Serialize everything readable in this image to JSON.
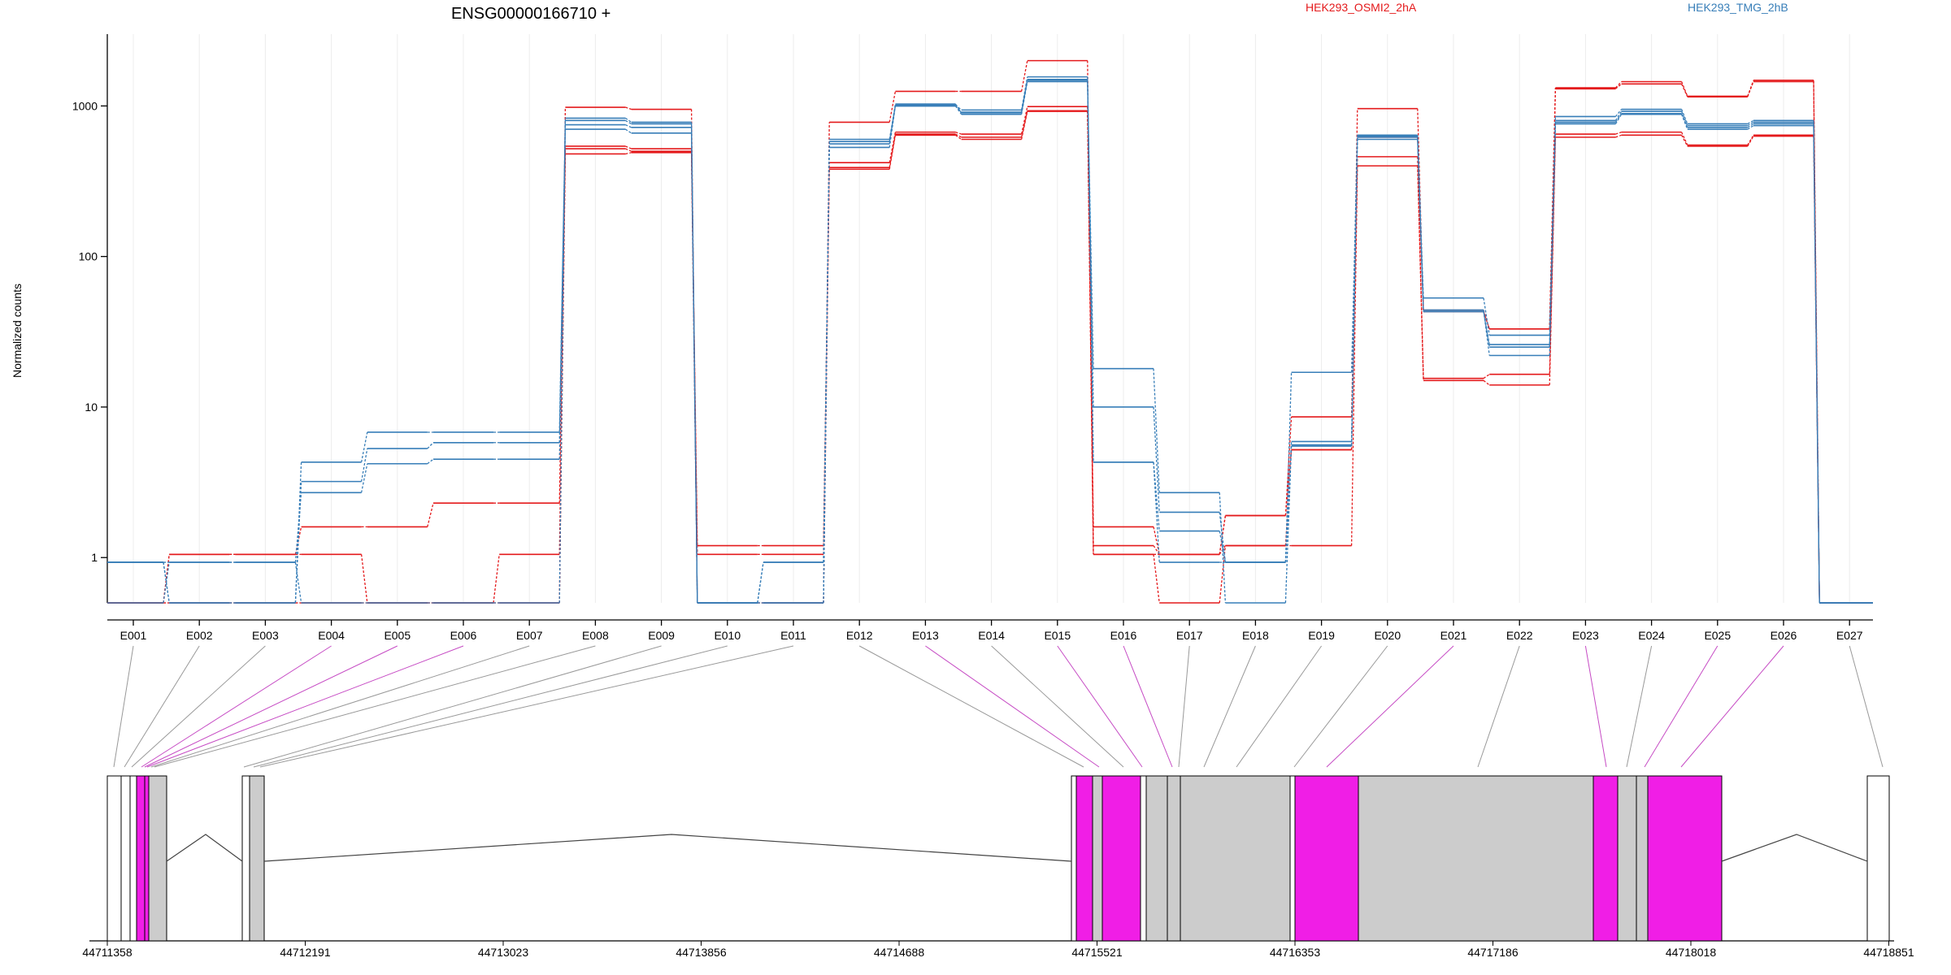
{
  "chart_data": {
    "type": "line",
    "title": "ENSG00000166710 +",
    "ylabel": "Normalized counts",
    "yscale": "log",
    "ylim": [
      0.5,
      3000
    ],
    "yticks": [
      {
        "value": 1,
        "label": "1"
      },
      {
        "value": 10,
        "label": "10"
      },
      {
        "value": 100,
        "label": "100"
      },
      {
        "value": 1000,
        "label": "1000"
      }
    ],
    "grid": "vertical",
    "legend": [
      {
        "name": "HEK293_OSMI2_2hA",
        "color": "#e41a1c"
      },
      {
        "name": "HEK293_TMG_2hB",
        "color": "#377eb8"
      }
    ],
    "categories": [
      "E001",
      "E002",
      "E003",
      "E004",
      "E005",
      "E006",
      "E007",
      "E008",
      "E009",
      "E010",
      "E011",
      "E012",
      "E013",
      "E014",
      "E015",
      "E016",
      "E017",
      "E018",
      "E019",
      "E020",
      "E021",
      "E022",
      "E023",
      "E024",
      "E025",
      "E026",
      "E027"
    ],
    "series": [
      {
        "color": "#e41a1c",
        "values": [
          0.5,
          1.05,
          1.05,
          1.05,
          0.5,
          0.5,
          1.05,
          520,
          500,
          1.05,
          1.05,
          390,
          650,
          620,
          930,
          1.05,
          0.5,
          1.2,
          1.2,
          400,
          15,
          14,
          620,
          640,
          540,
          630,
          0.5
        ]
      },
      {
        "color": "#e41a1c",
        "values": [
          0.5,
          1.05,
          1.05,
          1.6,
          1.6,
          2.3,
          2.3,
          540,
          520,
          1.2,
          1.2,
          420,
          670,
          650,
          990,
          1.2,
          1.05,
          1.2,
          5.2,
          460,
          15.5,
          16.5,
          650,
          670,
          550,
          640,
          0.5
        ]
      },
      {
        "color": "#e41a1c",
        "values": [
          0.5,
          0.5,
          0.5,
          0.5,
          0.5,
          0.5,
          0.5,
          480,
          490,
          0.5,
          0.5,
          380,
          640,
          600,
          920,
          1.6,
          1.05,
          1.9,
          8.6,
          620,
          44,
          33,
          1300,
          1400,
          1150,
          1450,
          0.5
        ]
      },
      {
        "color": "#e41a1c",
        "values": [
          0.5,
          0.5,
          0.5,
          0.5,
          0.5,
          0.5,
          0.5,
          980,
          950,
          0.5,
          0.5,
          780,
          1250,
          1250,
          2000,
          1.05,
          1.05,
          1.9,
          5.2,
          960,
          43,
          33,
          1320,
          1450,
          1160,
          1480,
          0.5
        ]
      },
      {
        "color": "#377eb8",
        "values": [
          0.93,
          0.93,
          0.93,
          2.7,
          4.2,
          4.5,
          4.5,
          700,
          660,
          0.5,
          0.93,
          530,
          1000,
          880,
          1450,
          18,
          2.7,
          0.5,
          5.5,
          620,
          53,
          30,
          850,
          950,
          760,
          800,
          0.5
        ]
      },
      {
        "color": "#377eb8",
        "values": [
          0.93,
          0.5,
          0.5,
          4.3,
          6.8,
          6.8,
          6.8,
          750,
          720,
          0.5,
          0.5,
          560,
          1030,
          900,
          1500,
          10,
          2.0,
          0.93,
          5.6,
          630,
          43,
          25,
          800,
          920,
          740,
          780,
          0.5
        ]
      },
      {
        "color": "#377eb8",
        "values": [
          0.93,
          0.5,
          0.5,
          3.2,
          5.3,
          5.8,
          5.8,
          830,
          780,
          0.5,
          0.5,
          600,
          1020,
          940,
          1560,
          4.3,
          1.5,
          0.93,
          5.9,
          600,
          44,
          22,
          780,
          890,
          720,
          760,
          0.5
        ]
      },
      {
        "color": "#377eb8",
        "values": [
          0.5,
          0.93,
          0.93,
          0.5,
          0.5,
          0.5,
          0.5,
          800,
          760,
          0.5,
          0.93,
          580,
          1000,
          910,
          1480,
          4.3,
          0.93,
          0.93,
          17,
          640,
          44,
          26,
          760,
          880,
          700,
          740,
          0.5
        ]
      }
    ]
  },
  "gene_model": {
    "coordinates": [
      "44711358",
      "44712191",
      "44713023",
      "44713856",
      "44714688",
      "44715521",
      "44716353",
      "44717186",
      "44718018",
      "44718851"
    ],
    "highlight_color": "#f01ee6",
    "exon_color": "#cccccc",
    "link_color": "#888888"
  }
}
